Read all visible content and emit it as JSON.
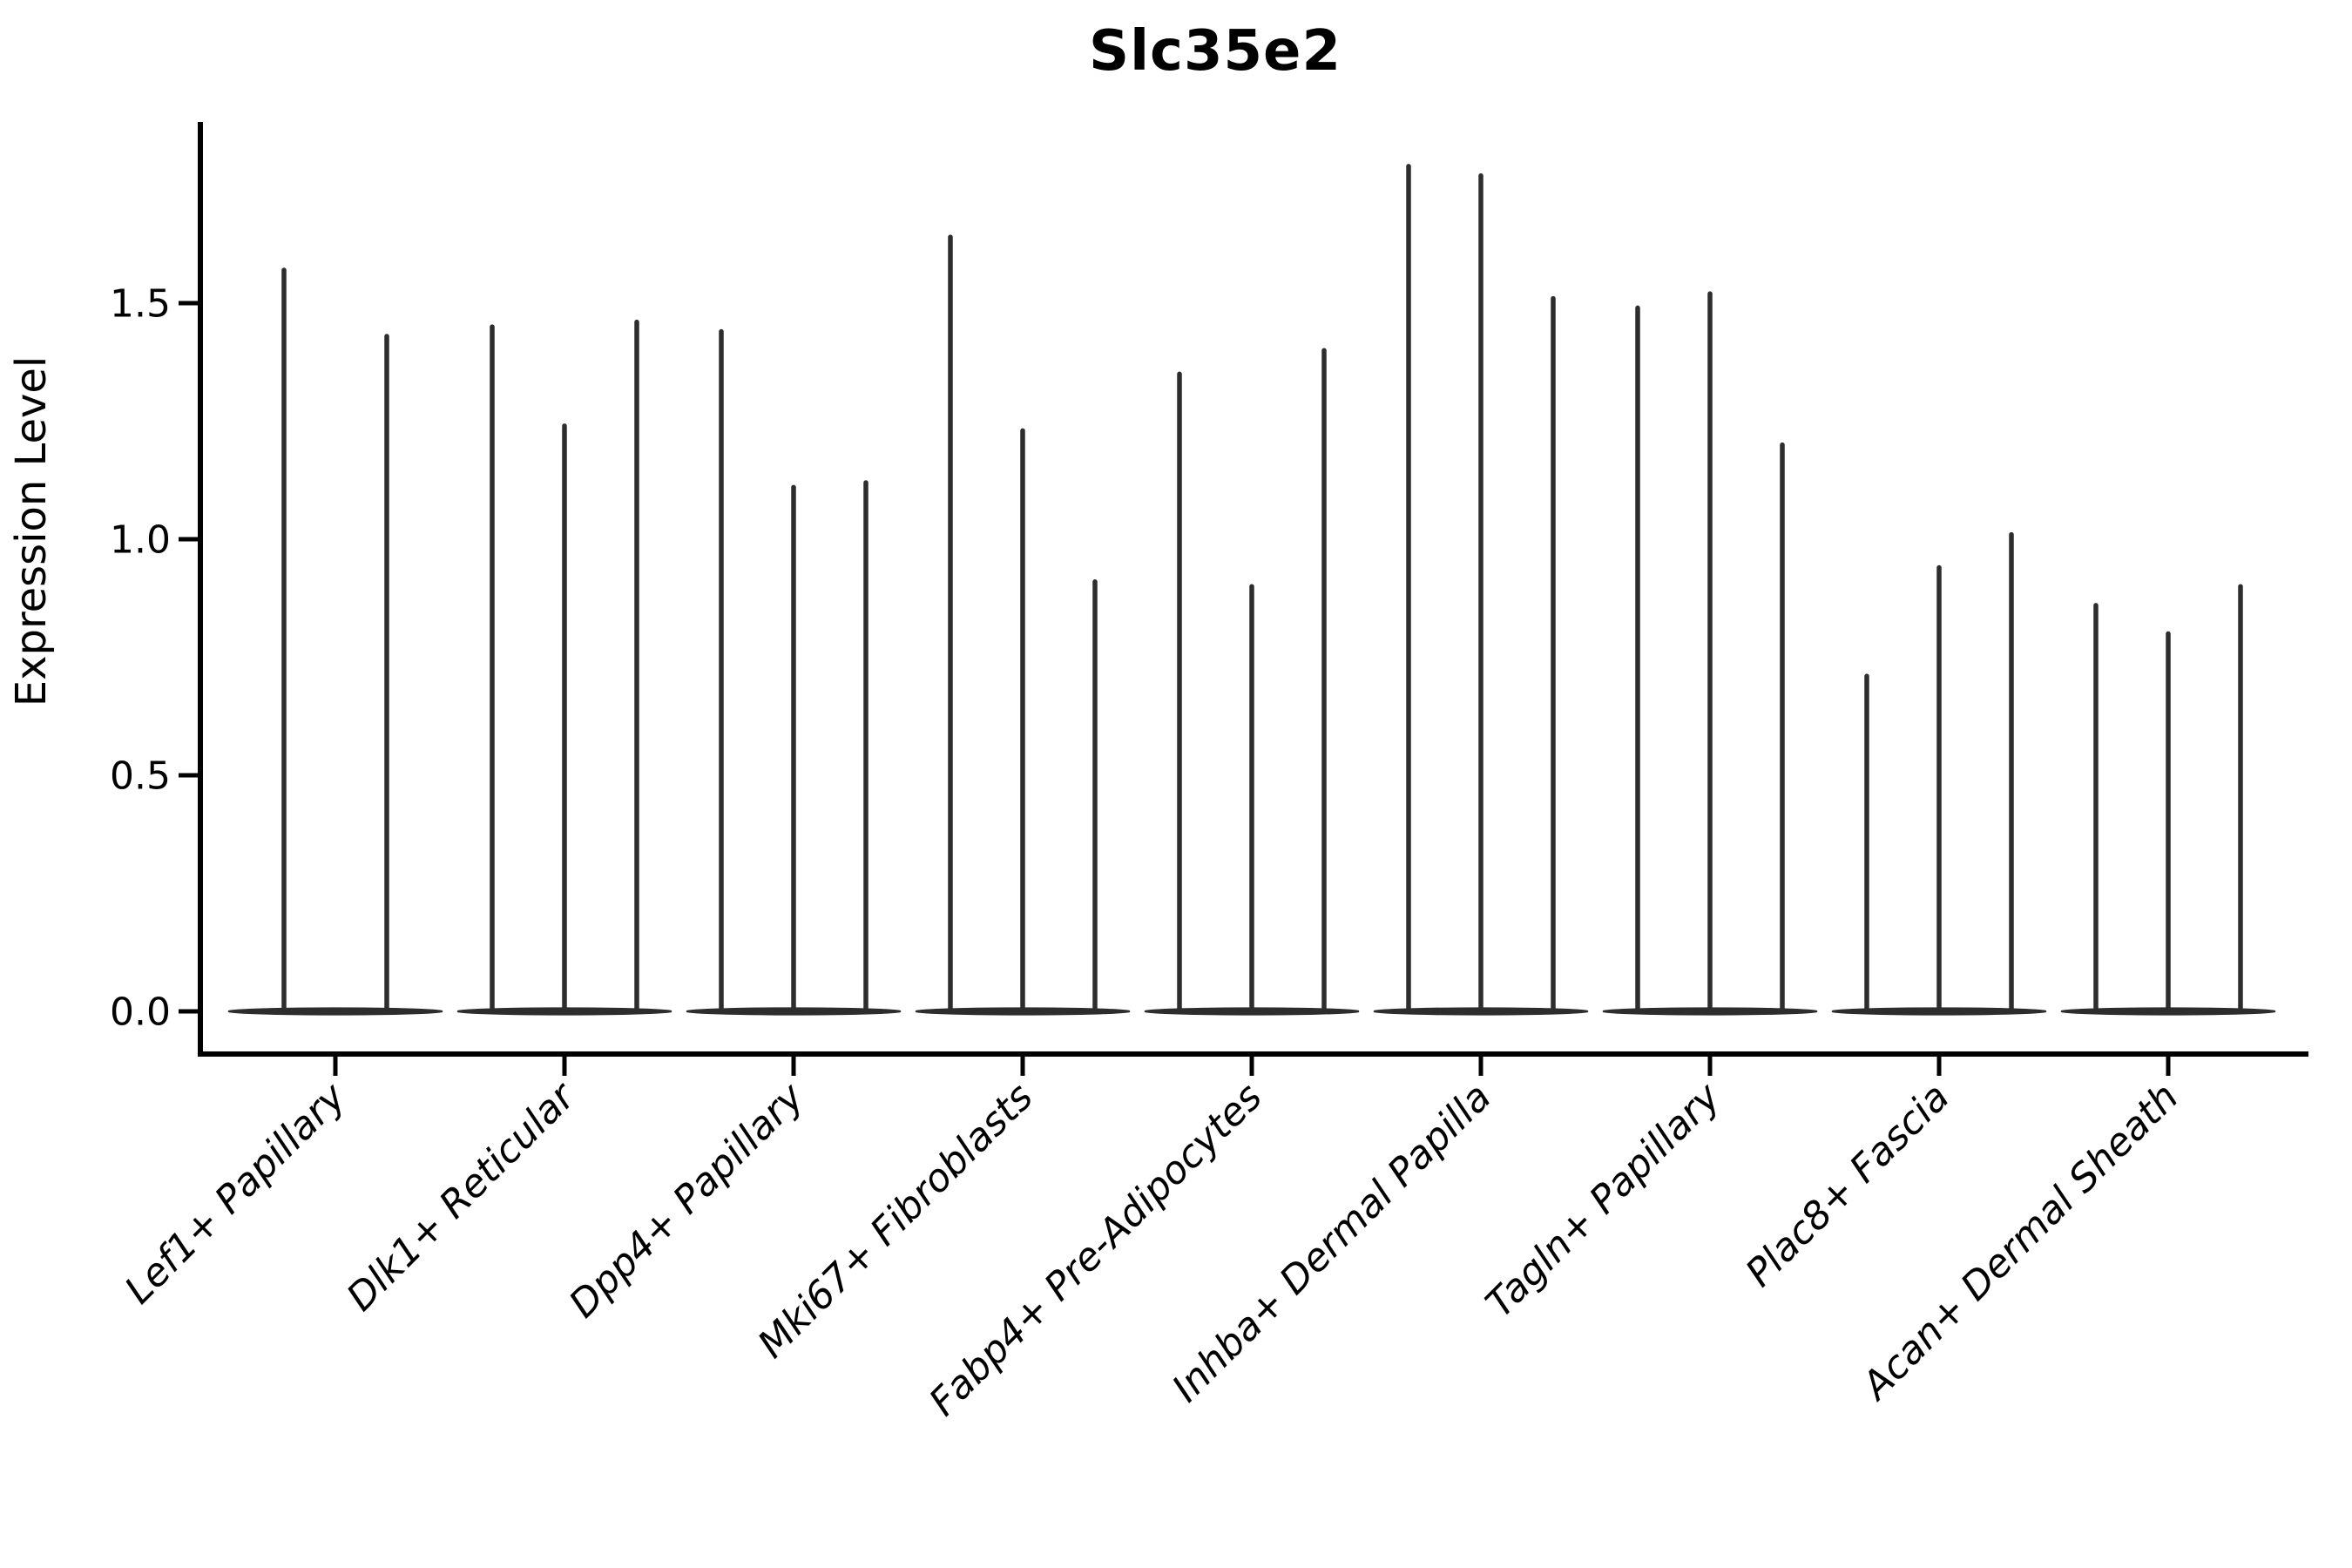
{
  "chart_data": {
    "type": "violin",
    "title": "Slc35e2",
    "ylabel": "Expression Level",
    "xlabel": "",
    "categories": [
      "Lef1+ Papillary",
      "Dlk1+ Reticular",
      "Dpp4+ Papillary",
      "Mki67+ Fibroblasts",
      "Fabp4+ Pre-Adipocytes",
      "Inhba+ Dermal Papilla",
      "Tagln+ Papillary",
      "Plac8+ Fascia",
      "Acan+ Dermal Sheath"
    ],
    "groups": [
      {
        "category": "Lef1+ Papillary",
        "violin_maxima": [
          1.57,
          1.43
        ]
      },
      {
        "category": "Dlk1+ Reticular",
        "violin_maxima": [
          1.45,
          1.24,
          1.46
        ]
      },
      {
        "category": "Dpp4+ Papillary",
        "violin_maxima": [
          1.44,
          1.11,
          1.12
        ]
      },
      {
        "category": "Mki67+ Fibroblasts",
        "violin_maxima": [
          1.64,
          1.23,
          0.91
        ]
      },
      {
        "category": "Fabp4+ Pre-Adipocytes",
        "violin_maxima": [
          1.35,
          0.9,
          1.4
        ]
      },
      {
        "category": "Inhba+ Dermal Papilla",
        "violin_maxima": [
          1.79,
          1.77,
          1.51
        ]
      },
      {
        "category": "Tagln+ Papillary",
        "violin_maxima": [
          1.49,
          1.52,
          1.2
        ]
      },
      {
        "category": "Plac8+ Fascia",
        "violin_maxima": [
          0.71,
          0.94,
          1.01
        ]
      },
      {
        "category": "Acan+ Dermal Sheath",
        "violin_maxima": [
          0.86,
          0.8,
          0.9
        ]
      }
    ],
    "violin_baseline_value": 0.0,
    "yticks": [
      0.0,
      0.5,
      1.0,
      1.5
    ],
    "ylim": [
      0,
      1.88
    ],
    "grid": false,
    "legend": "none",
    "colors": {
      "violin": "#2d2d2d",
      "axis": "#000000",
      "text": "#000000",
      "background": "#ffffff"
    }
  }
}
